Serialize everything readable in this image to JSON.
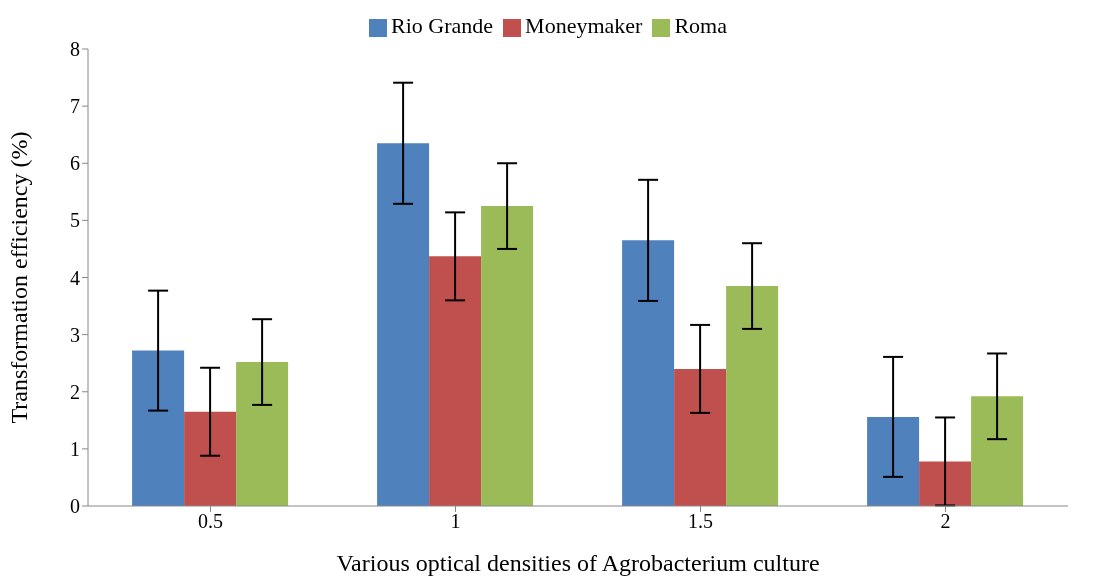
{
  "chart_data": {
    "type": "bar",
    "xlabel": "Various optical densities of Agrobacterium culture",
    "ylabel": "Transformation efficiency (%)",
    "categories": [
      "0.5",
      "1",
      "1.5",
      "2"
    ],
    "series": [
      {
        "name": "Rio Grande",
        "color": "#4f81bd",
        "values": [
          2.72,
          6.35,
          4.65,
          1.56
        ],
        "errors": [
          1.05,
          1.06,
          1.06,
          1.05
        ]
      },
      {
        "name": "Moneymaker",
        "color": "#c0504d",
        "values": [
          1.65,
          4.37,
          2.4,
          0.78
        ],
        "errors": [
          0.77,
          0.77,
          0.77,
          0.77
        ]
      },
      {
        "name": "Roma",
        "color": "#9bbb59",
        "values": [
          2.52,
          5.25,
          3.85,
          1.92
        ],
        "errors": [
          0.75,
          0.75,
          0.75,
          0.75
        ]
      }
    ],
    "ylim": [
      0,
      8
    ],
    "yticks": [
      0,
      1,
      2,
      3,
      4,
      5,
      6,
      7,
      8
    ],
    "grid": false,
    "legend": "top"
  }
}
